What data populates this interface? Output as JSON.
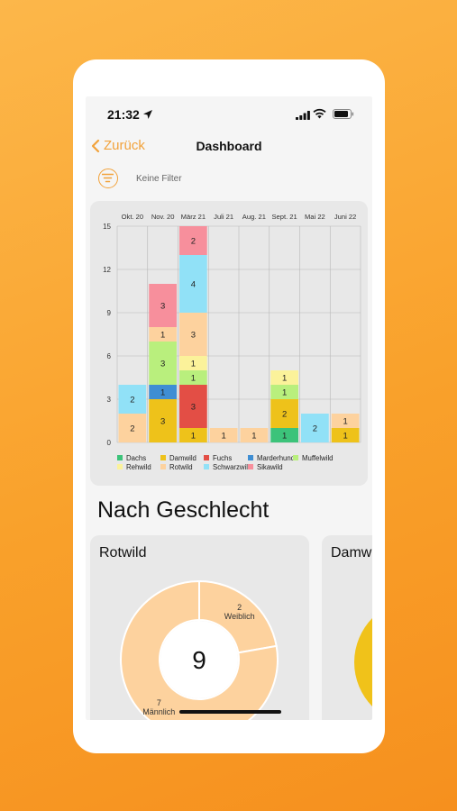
{
  "status_bar": {
    "time": "21:32"
  },
  "nav": {
    "back_label": "Zurück",
    "title": "Dashboard"
  },
  "filter": {
    "label": "Keine Filter"
  },
  "chart_data": {
    "type": "bar",
    "stacked": true,
    "categories": [
      "Okt. 20",
      "Nov. 20",
      "März 21",
      "Juli 21",
      "Aug. 21",
      "Sept. 21",
      "Mai 22",
      "Juni 22"
    ],
    "ylim": [
      0,
      15
    ],
    "yticks": [
      0,
      3,
      6,
      9,
      12,
      15
    ],
    "grid": true,
    "legend_position": "bottom",
    "series": [
      {
        "name": "Dachs",
        "color": "#3cc37a",
        "values": [
          0,
          0,
          0,
          0,
          0,
          1,
          0,
          0
        ]
      },
      {
        "name": "Damwild",
        "color": "#eec21a",
        "values": [
          0,
          3,
          1,
          0,
          0,
          2,
          0,
          1
        ]
      },
      {
        "name": "Fuchs",
        "color": "#e34e45",
        "values": [
          0,
          0,
          3,
          0,
          0,
          0,
          0,
          0
        ]
      },
      {
        "name": "Marderhund",
        "color": "#3f8ed3",
        "values": [
          0,
          1,
          0,
          0,
          0,
          0,
          0,
          0
        ]
      },
      {
        "name": "Muffelwild",
        "color": "#b9ef7d",
        "values": [
          0,
          3,
          1,
          0,
          0,
          1,
          0,
          0
        ]
      },
      {
        "name": "Rehwild",
        "color": "#fbf29a",
        "values": [
          0,
          0,
          1,
          0,
          0,
          1,
          0,
          0
        ]
      },
      {
        "name": "Rotwild",
        "color": "#fdd29e",
        "values": [
          2,
          1,
          3,
          1,
          1,
          0,
          0,
          1
        ]
      },
      {
        "name": "Schwarzwild",
        "color": "#91e1f7",
        "values": [
          2,
          0,
          4,
          0,
          0,
          0,
          2,
          0
        ]
      },
      {
        "name": "Sikawild",
        "color": "#f78f9c",
        "values": [
          0,
          3,
          2,
          0,
          0,
          0,
          0,
          0
        ]
      }
    ]
  },
  "gender_section": {
    "title": "Nach Geschlecht"
  },
  "donut": {
    "title": "Rotwild",
    "total": "9",
    "segments": [
      {
        "label": "Weiblich",
        "value": 2,
        "value_label": "2",
        "color": "#fdd29e"
      },
      {
        "label": "Männlich",
        "value": 7,
        "value_label": "7",
        "color": "#fdd29e"
      }
    ]
  },
  "donut2": {
    "title": "Damwild",
    "color": "#f0c21a"
  }
}
